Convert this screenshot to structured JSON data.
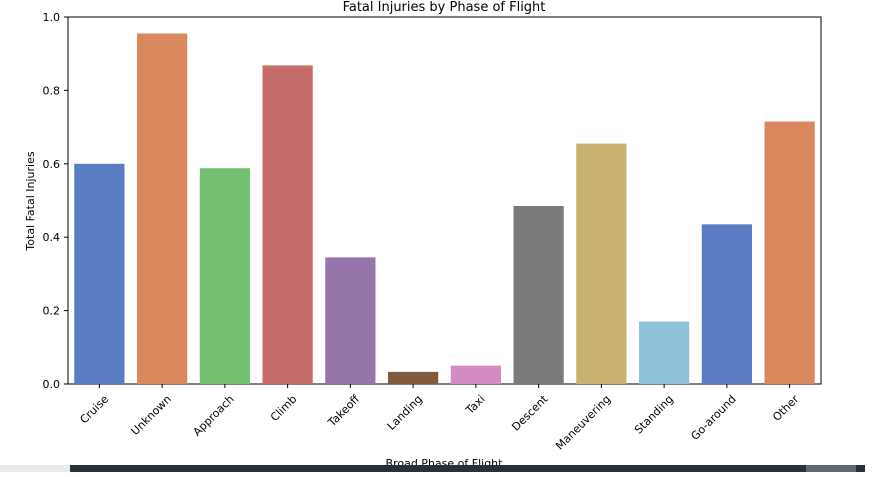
{
  "chart_data": {
    "type": "bar",
    "title": "Fatal Injuries by Phase of Flight",
    "xlabel": "Broad Phase of Flight",
    "ylabel": "Total Fatal Injuries",
    "ylim": [
      0,
      1.0
    ],
    "yticks": [
      "0.0",
      "0.2",
      "0.4",
      "0.6",
      "0.8",
      "1.0"
    ],
    "grid": false,
    "categories": [
      "Cruise",
      "Unknown",
      "Approach",
      "Climb",
      "Takeoff",
      "Landing",
      "Taxi",
      "Descent",
      "Maneuvering",
      "Standing",
      "Go-around",
      "Other"
    ],
    "values": [
      0.6,
      0.955,
      0.588,
      0.868,
      0.345,
      0.033,
      0.05,
      0.485,
      0.655,
      0.17,
      0.435,
      0.715
    ],
    "colors": [
      "#5a7cc2",
      "#d8885c",
      "#73bf72",
      "#c56c6b",
      "#9575aa",
      "#7f5b3f",
      "#d38cc1",
      "#7a7a7a",
      "#c8b171",
      "#8fc2d8",
      "#5a7cc2",
      "#d8885c"
    ]
  }
}
